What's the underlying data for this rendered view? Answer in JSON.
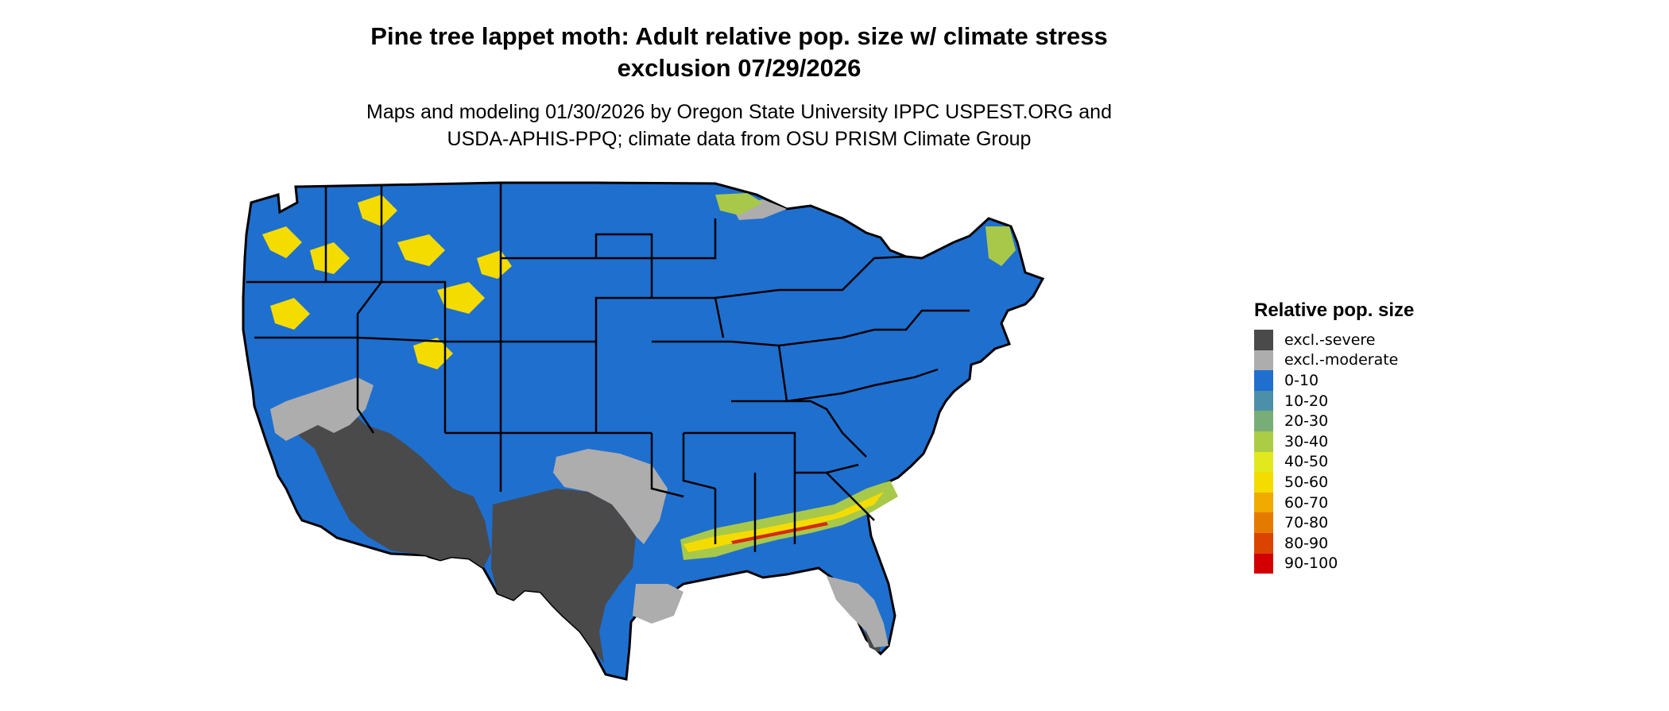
{
  "title": {
    "line1": "Pine tree lappet moth: Adult relative pop. size w/ climate stress",
    "line2": "exclusion 07/29/2026"
  },
  "subtitle": {
    "line1": "Maps and modeling 01/30/2026 by Oregon State University IPPC USPEST.ORG and",
    "line2": "USDA-APHIS-PPQ; climate data from OSU PRISM Climate Group"
  },
  "map": {
    "region": "Contiguous United States",
    "base_color": "#1f6fcf",
    "excl_severe_color": "#4a4a4a",
    "excl_moderate_color": "#adadad",
    "high_color": "#f5dc00",
    "mid_color": "#a8c84a",
    "peak_color": "#d42a10"
  },
  "legend": {
    "title": "Relative pop. size",
    "items": [
      {
        "label": "excl.-severe",
        "color": "#4a4a4a"
      },
      {
        "label": "excl.-moderate",
        "color": "#adadad"
      },
      {
        "label": "0-10",
        "color": "#1f6fcf"
      },
      {
        "label": "10-20",
        "color": "#4b90a8"
      },
      {
        "label": "20-30",
        "color": "#79ad77"
      },
      {
        "label": "30-40",
        "color": "#abcc45"
      },
      {
        "label": "40-50",
        "color": "#e1e81e"
      },
      {
        "label": "50-60",
        "color": "#f5dc00"
      },
      {
        "label": "60-70",
        "color": "#f0aa00"
      },
      {
        "label": "70-80",
        "color": "#e57a00"
      },
      {
        "label": "80-90",
        "color": "#db4300"
      },
      {
        "label": "90-100",
        "color": "#d20000"
      }
    ]
  }
}
